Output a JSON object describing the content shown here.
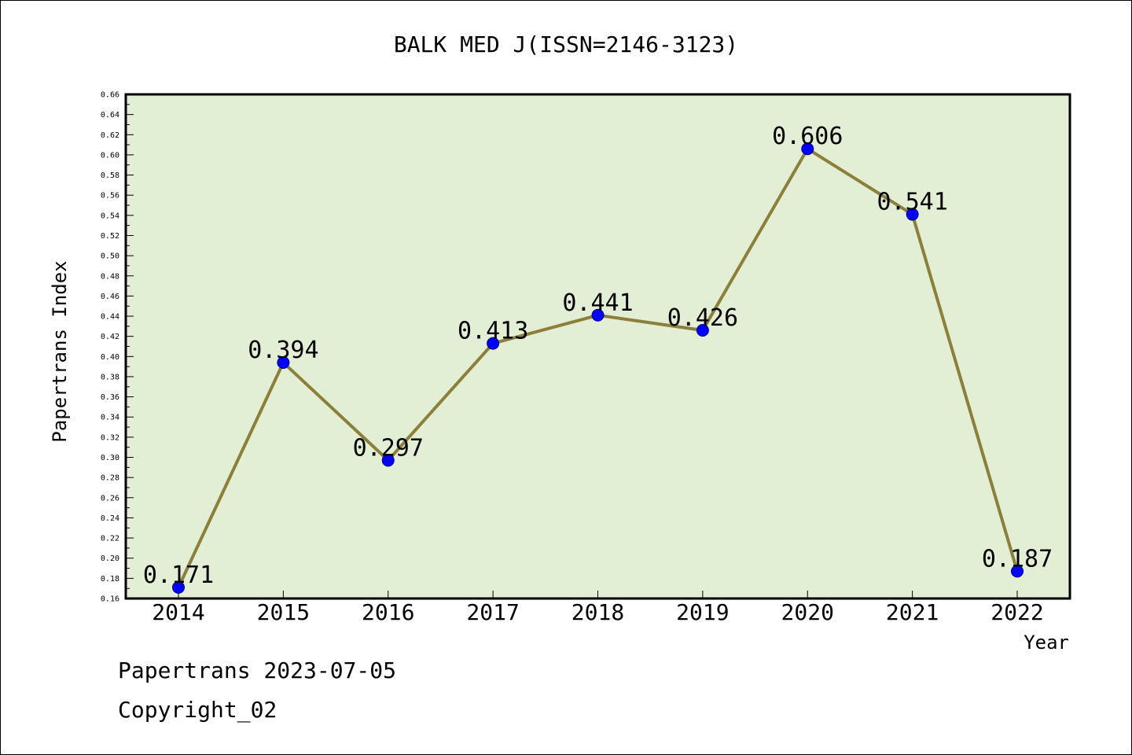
{
  "chart_data": {
    "type": "line",
    "title": "BALK MED J(ISSN=2146-3123)",
    "xlabel": "Year",
    "ylabel": "Papertrans Index",
    "categories": [
      "2014",
      "2015",
      "2016",
      "2017",
      "2018",
      "2019",
      "2020",
      "2021",
      "2022"
    ],
    "series": [
      {
        "values": [
          0.171,
          0.394,
          0.297,
          0.413,
          0.441,
          0.426,
          0.606,
          0.541,
          0.187
        ],
        "data_labels": [
          "0.171",
          "0.394",
          "0.297",
          "0.413",
          "0.441",
          "0.426",
          "0.606",
          "0.541",
          "0.187"
        ]
      }
    ],
    "ylim": [
      0.16,
      0.66
    ],
    "ytick_step": 0.02,
    "grid": false,
    "colors": {
      "plot_background": "#e2efd4",
      "line": "#8b7f3a",
      "marker": "#0000ff",
      "marker_edge": "#000080"
    }
  },
  "footer": {
    "line1": "Papertrans 2023-07-05",
    "line2": "Copyright_02"
  }
}
